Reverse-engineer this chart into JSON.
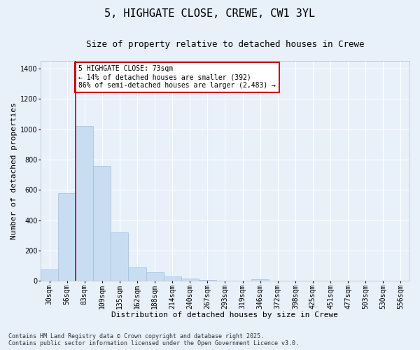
{
  "title_line1": "5, HIGHGATE CLOSE, CREWE, CW1 3YL",
  "title_line2": "Size of property relative to detached houses in Crewe",
  "xlabel": "Distribution of detached houses by size in Crewe",
  "ylabel": "Number of detached properties",
  "bar_color": "#c9ddf2",
  "bar_edge_color": "#9bbfe0",
  "bg_color": "#e8f0fa",
  "grid_color": "#ffffff",
  "categories": [
    "30sqm",
    "56sqm",
    "83sqm",
    "109sqm",
    "135sqm",
    "162sqm",
    "188sqm",
    "214sqm",
    "240sqm",
    "267sqm",
    "293sqm",
    "319sqm",
    "346sqm",
    "372sqm",
    "398sqm",
    "425sqm",
    "451sqm",
    "477sqm",
    "503sqm",
    "530sqm",
    "556sqm"
  ],
  "values": [
    75,
    580,
    1020,
    760,
    320,
    90,
    55,
    30,
    15,
    5,
    0,
    0,
    12,
    0,
    0,
    0,
    0,
    0,
    0,
    0,
    0
  ],
  "ylim": [
    0,
    1450
  ],
  "yticks": [
    0,
    200,
    400,
    600,
    800,
    1000,
    1200,
    1400
  ],
  "vline_pos": 1.5,
  "annotation_text": "5 HIGHGATE CLOSE: 73sqm\n← 14% of detached houses are smaller (392)\n86% of semi-detached houses are larger (2,483) →",
  "annotation_box_color": "#ffffff",
  "annotation_edge_color": "#cc0000",
  "vline_color": "#cc0000",
  "footnote": "Contains HM Land Registry data © Crown copyright and database right 2025.\nContains public sector information licensed under the Open Government Licence v3.0.",
  "title_fontsize": 11,
  "subtitle_fontsize": 9,
  "label_fontsize": 8,
  "tick_fontsize": 7,
  "annot_fontsize": 7,
  "footnote_fontsize": 6
}
